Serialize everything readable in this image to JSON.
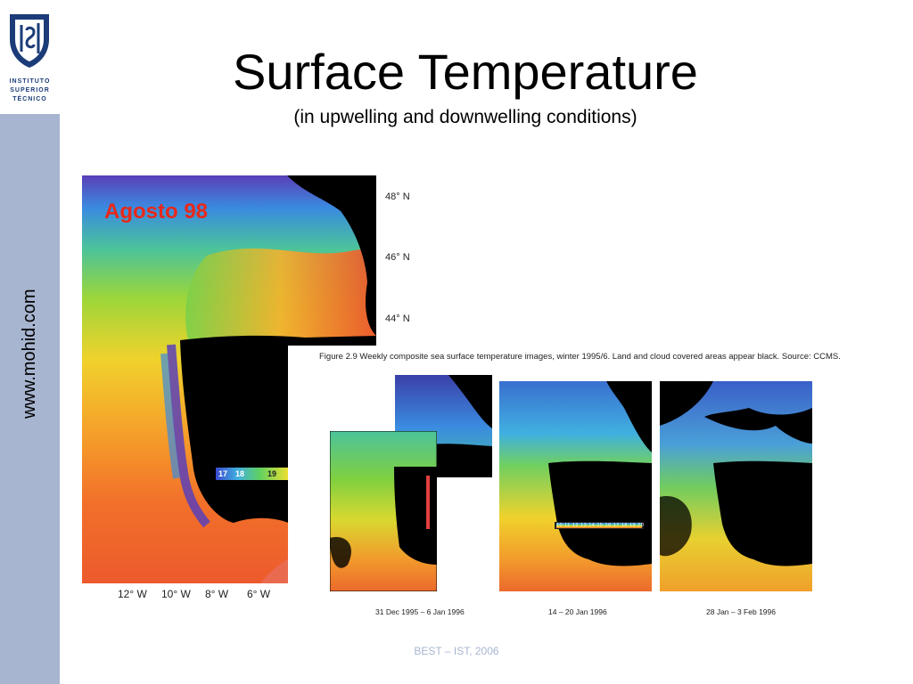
{
  "logo": {
    "lines": [
      "INSTITUTO",
      "SUPERIOR",
      "TÉCNICO"
    ],
    "brand_color": "#1b3c78"
  },
  "sidebar": {
    "url": "www.mohid.com",
    "color": "#a7b5d0"
  },
  "slide": {
    "title": "Surface Temperature",
    "subtitle": "(in upwelling and downwelling conditions)"
  },
  "main_map": {
    "label": "Agosto 98",
    "latitudes": [
      "48° N",
      "46° N",
      "44° N"
    ],
    "longitudes": [
      "12° W",
      "10° W",
      "8° W",
      "6° W"
    ],
    "scale_ticks": [
      "17",
      "18",
      "19"
    ]
  },
  "figure": {
    "caption": "Figure 2.9  Weekly composite sea surface temperature images, winter 1995/6. Land and cloud covered areas appear black. Source: CCMS.",
    "panels": [
      {
        "date": "31 Dec 1995 – 6 Jan 1996"
      },
      {
        "date": "14 – 20 Jan 1996"
      },
      {
        "date": "28 Jan – 3 Feb 1996"
      }
    ],
    "scale_ticks": [
      "10",
      "11",
      "12",
      "13",
      "14",
      "15",
      "16",
      "17",
      "18",
      "19",
      "20"
    ]
  },
  "footer": "BEST – IST, 2006"
}
